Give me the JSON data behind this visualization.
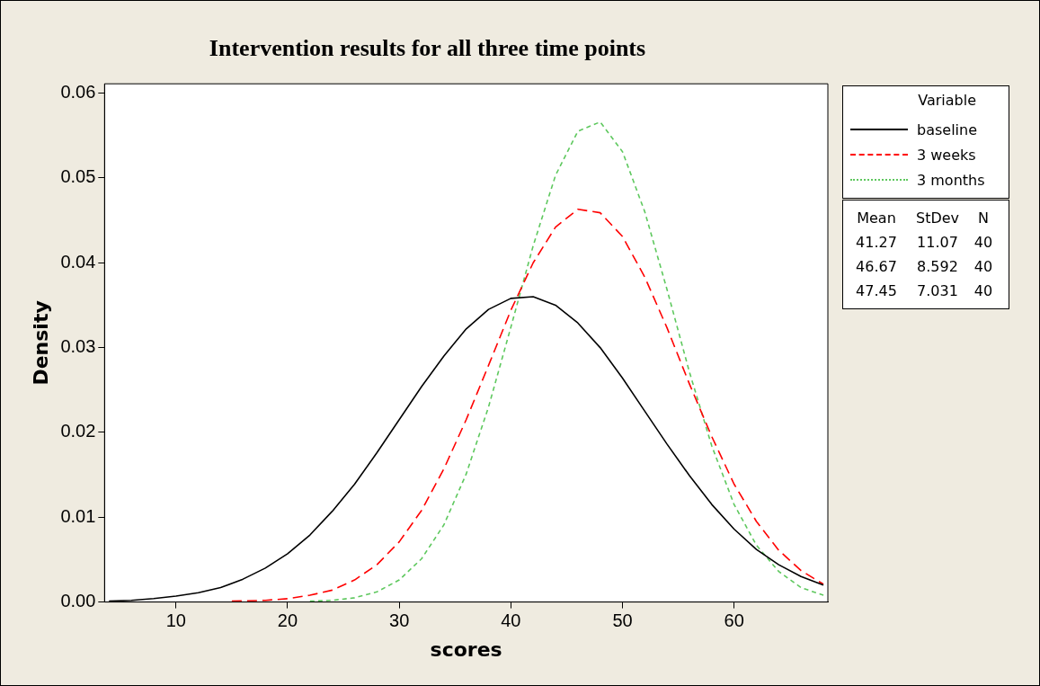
{
  "chart_data": {
    "type": "line",
    "title": "Intervention results for all three time points",
    "xlabel": "scores",
    "ylabel": "Density",
    "legend_title": "Variable",
    "legend": "top right",
    "grid": false,
    "marker": "none",
    "xlim": [
      3.6,
      68.4
    ],
    "xticks": [
      10,
      20,
      30,
      40,
      50,
      60
    ],
    "ylim": [
      0,
      0.0611
    ],
    "yticks": [
      {
        "value": 0,
        "label": "0.00"
      },
      {
        "value": 0.01,
        "label": "0.01"
      },
      {
        "value": 0.02,
        "label": "0.02"
      },
      {
        "value": 0.03,
        "label": "0.03"
      },
      {
        "value": 0.04,
        "label": "0.04"
      },
      {
        "value": 0.05,
        "label": "0.05"
      },
      {
        "value": 0.06,
        "label": "0.06"
      }
    ],
    "series": [
      {
        "name": "baseline",
        "color": "#000000",
        "line_style": "solid",
        "x": [
          4,
          6,
          8,
          10,
          12,
          14,
          16,
          18,
          20,
          22,
          24,
          26,
          28,
          30,
          32,
          34,
          36,
          38,
          40,
          42,
          44,
          46,
          48,
          50,
          52,
          54,
          56,
          58,
          60,
          62,
          64,
          66,
          68
        ],
        "values": [
          0.0001,
          0.0002,
          0.0004,
          0.0007,
          0.0011,
          0.0017,
          0.0027,
          0.004,
          0.0057,
          0.0079,
          0.0107,
          0.0139,
          0.0176,
          0.0215,
          0.0254,
          0.029,
          0.0322,
          0.0345,
          0.0358,
          0.036,
          0.035,
          0.0329,
          0.03,
          0.0264,
          0.0225,
          0.0186,
          0.0149,
          0.0115,
          0.0086,
          0.0062,
          0.0044,
          0.003,
          0.002
        ]
      },
      {
        "name": "3 weeks",
        "color": "#ff0000",
        "line_style": "dashed",
        "x": [
          15,
          18,
          20,
          22,
          24,
          26,
          28,
          30,
          32,
          34,
          36,
          38,
          40,
          42,
          44,
          46,
          48,
          50,
          52,
          54,
          56,
          58,
          60,
          62,
          64,
          66,
          68
        ],
        "values": [
          0.0001,
          0.0002,
          0.0004,
          0.0008,
          0.0014,
          0.0026,
          0.0044,
          0.0071,
          0.0108,
          0.0157,
          0.0215,
          0.0279,
          0.0344,
          0.04,
          0.0442,
          0.0463,
          0.0459,
          0.0431,
          0.0383,
          0.0323,
          0.0257,
          0.0195,
          0.0139,
          0.0095,
          0.0061,
          0.0037,
          0.0021
        ]
      },
      {
        "name": "3 months",
        "color": "#5ec85e",
        "line_style": "dotted",
        "x": [
          22,
          24,
          26,
          28,
          30,
          32,
          34,
          36,
          38,
          40,
          42,
          44,
          46,
          48,
          50,
          52,
          54,
          56,
          58,
          60,
          62,
          64,
          66,
          68
        ],
        "values": [
          0.0001,
          0.0002,
          0.0005,
          0.0012,
          0.0026,
          0.0051,
          0.0091,
          0.0151,
          0.023,
          0.0324,
          0.042,
          0.0503,
          0.0555,
          0.0566,
          0.0531,
          0.046,
          0.0368,
          0.0271,
          0.0184,
          0.0115,
          0.0067,
          0.0036,
          0.0017,
          0.0008
        ]
      }
    ],
    "annotations": [
      "Mean StDev N",
      "41.27 11.07 40",
      "46.67 8.592 40",
      "47.45 7.031 40"
    ]
  }
}
